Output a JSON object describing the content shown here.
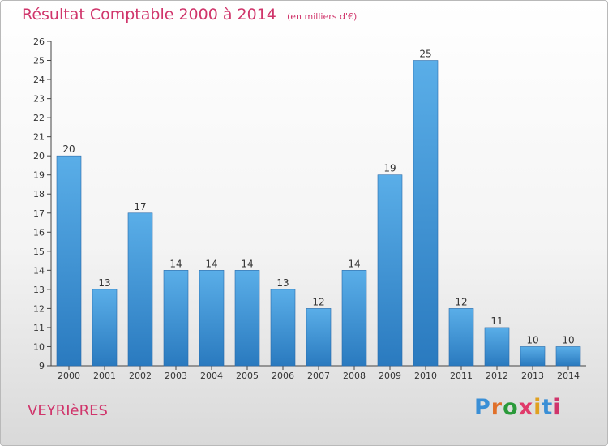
{
  "header": {
    "title": "Résultat Comptable 2000 à 2014",
    "unit": "(en milliers d'€)"
  },
  "town": "VEYRIèRES",
  "brand": {
    "text": "Proxiti",
    "letter_colors": [
      "#3a8fd6",
      "#e0702a",
      "#2a9a3a",
      "#e03a6a",
      "#e0a020",
      "#3a8fd6",
      "#d0356b"
    ]
  },
  "colors": {
    "bar_top": "#5aaee8",
    "bar_bottom": "#2a7abf",
    "text": "#333333",
    "accent": "#d0356b"
  },
  "chart_data": {
    "type": "bar",
    "title": "Résultat Comptable 2000 à 2014",
    "xlabel": "",
    "ylabel": "",
    "ylim": [
      9,
      26
    ],
    "yticks": [
      9,
      10,
      11,
      12,
      13,
      14,
      15,
      16,
      17,
      18,
      19,
      20,
      21,
      22,
      23,
      24,
      25,
      26
    ],
    "categories": [
      "2000",
      "2001",
      "2002",
      "2003",
      "2004",
      "2005",
      "2006",
      "2007",
      "2008",
      "2009",
      "2010",
      "2011",
      "2012",
      "2013",
      "2014"
    ],
    "values": [
      20,
      13,
      17,
      14,
      14,
      14,
      13,
      12,
      14,
      19,
      25,
      12,
      11,
      10,
      10
    ],
    "legend": "none",
    "grid": false
  }
}
